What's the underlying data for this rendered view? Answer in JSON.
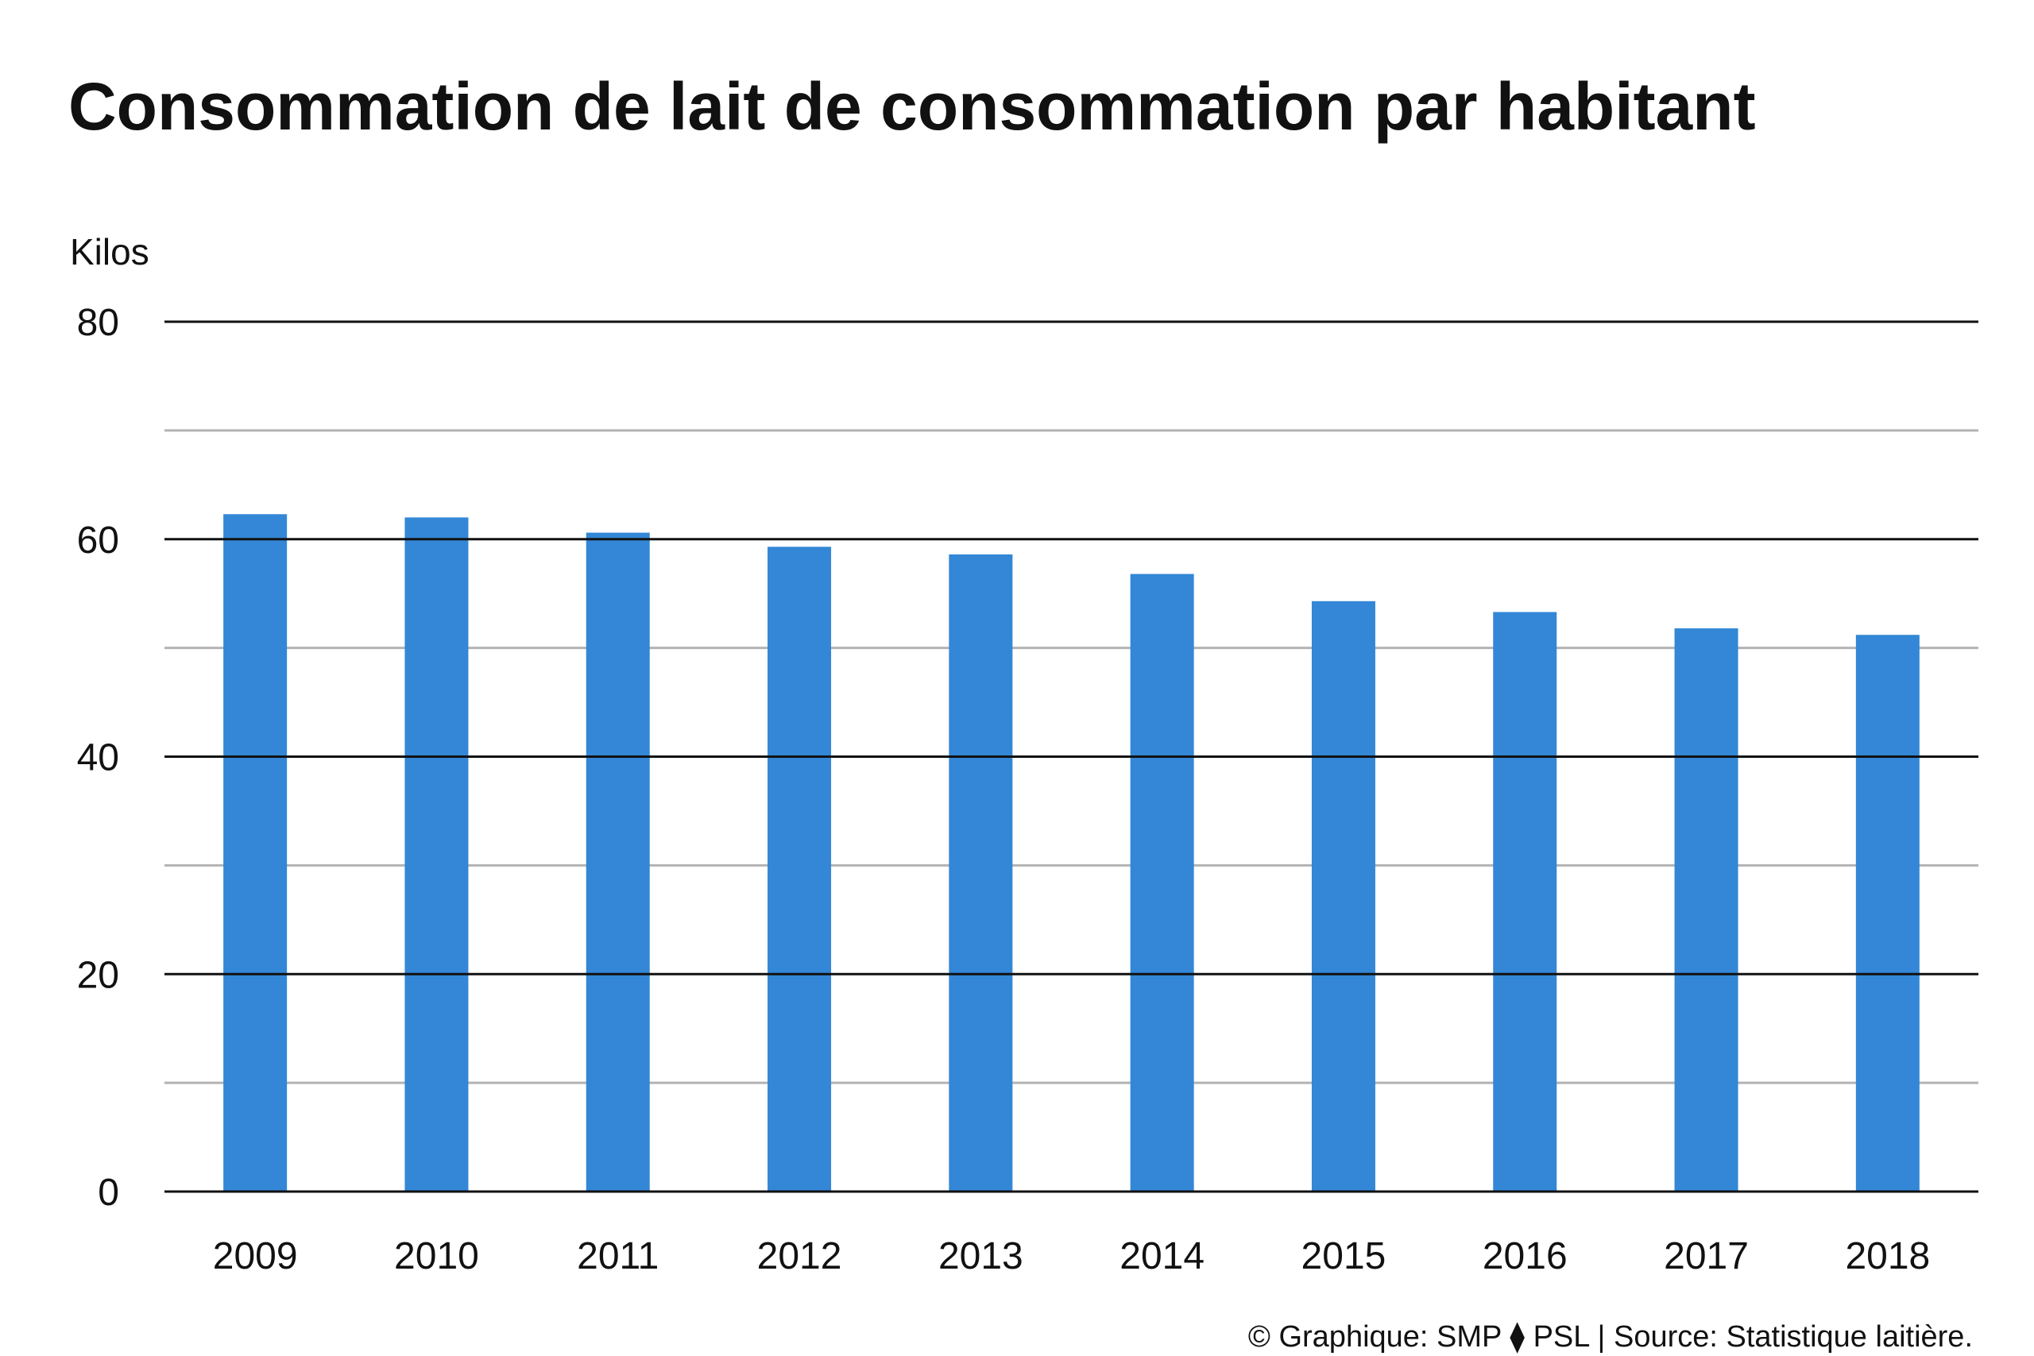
{
  "title": "Consommation de lait de consommation par habitant",
  "unit_label": "Kilos",
  "credit": "© Graphique: SMP ⧫ PSL | Source: Statistique laitière.",
  "colors": {
    "bar": "#3387d6",
    "major_grid": "#111111",
    "minor_grid": "#b3b3b3"
  },
  "chart_data": {
    "type": "bar",
    "categories": [
      "2009",
      "2010",
      "2011",
      "2012",
      "2013",
      "2014",
      "2015",
      "2016",
      "2017",
      "2018"
    ],
    "values": [
      62.3,
      62.0,
      60.6,
      59.3,
      58.6,
      56.8,
      54.3,
      53.3,
      51.8,
      51.2
    ],
    "title": "Consommation de lait de consommation par habitant",
    "ylabel": "Kilos",
    "xlabel": "",
    "ylim": [
      0,
      80
    ],
    "yticks": [
      0,
      20,
      40,
      60,
      80
    ],
    "minor_gridlines": [
      10,
      30,
      50,
      70
    ],
    "grid": true,
    "legend": "none"
  }
}
